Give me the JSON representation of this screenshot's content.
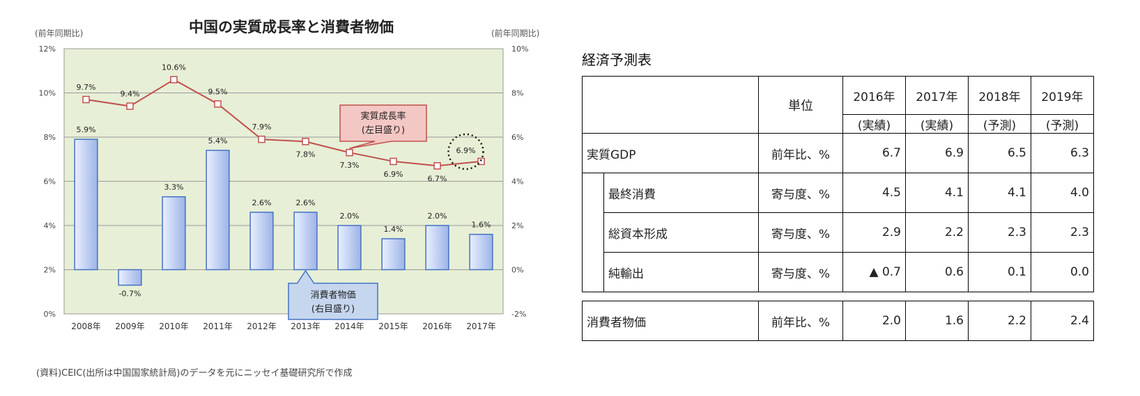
{
  "chart_data": {
    "type": "bar+line",
    "title": "中国の実質成長率と消費者物価",
    "left_axis_label": "(前年同期比)",
    "right_axis_label": "(前年同期比)",
    "categories": [
      "2008年",
      "2009年",
      "2010年",
      "2011年",
      "2012年",
      "2013年",
      "2014年",
      "2015年",
      "2016年",
      "2017年"
    ],
    "left_ticks": [
      "0%",
      "2%",
      "4%",
      "6%",
      "8%",
      "10%",
      "12%"
    ],
    "right_ticks": [
      "-2%",
      "0%",
      "2%",
      "4%",
      "6%",
      "8%",
      "10%"
    ],
    "ylim_left": [
      0,
      12
    ],
    "ylim_right": [
      -2,
      10
    ],
    "series": [
      {
        "name": "実質成長率",
        "kind": "line",
        "axis": "left",
        "values": [
          9.7,
          9.4,
          10.6,
          9.5,
          7.9,
          7.8,
          7.3,
          6.9,
          6.7,
          6.9
        ],
        "labels": [
          "9.7%",
          "9.4%",
          "10.6%",
          "9.5%",
          "7.9%",
          "7.8%",
          "7.3%",
          "6.9%",
          "6.7%",
          "6.9%"
        ],
        "color": "#c0504d"
      },
      {
        "name": "消費者物価",
        "kind": "bar",
        "axis": "right",
        "values": [
          5.9,
          -0.7,
          3.3,
          5.4,
          2.6,
          2.6,
          2.0,
          1.4,
          2.0,
          1.6
        ],
        "labels": [
          "5.9%",
          "-0.7%",
          "3.3%",
          "5.4%",
          "2.6%",
          "2.6%",
          "2.0%",
          "1.4%",
          "2.0%",
          "1.6%"
        ],
        "color": "#4472c4"
      }
    ],
    "callouts": {
      "growth": [
        "実質成長率",
        "(左目盛り)"
      ],
      "cpi": [
        "消費者物価",
        "(右目盛り)"
      ]
    },
    "source": "(資料)CEIC(出所は中国国家統計局)のデータを元にニッセイ基礎研究所で作成",
    "plot_bg": "#e7efd6",
    "grid": true
  },
  "table": {
    "title": "経済予測表",
    "unit_header": "単位",
    "years": [
      "2016年",
      "2017年",
      "2018年",
      "2019年"
    ],
    "year_types": [
      "(実績)",
      "(実績)",
      "(予測)",
      "(予測)"
    ],
    "rows": {
      "gdp": {
        "label": "実質GDP",
        "unit": "前年比、%",
        "values": [
          "6.7",
          "6.9",
          "6.5",
          "6.3"
        ]
      },
      "consumption": {
        "label": "最終消費",
        "unit": "寄与度、%",
        "values": [
          "4.5",
          "4.1",
          "4.1",
          "4.0"
        ]
      },
      "capital": {
        "label": "総資本形成",
        "unit": "寄与度、%",
        "values": [
          "2.9",
          "2.2",
          "2.3",
          "2.3"
        ]
      },
      "net_exports": {
        "label": "純輸出",
        "unit": "寄与度、%",
        "values": [
          "▲ 0.7",
          "0.6",
          "0.1",
          "0.0"
        ]
      },
      "cpi": {
        "label": "消費者物価",
        "unit": "前年比、%",
        "values": [
          "2.0",
          "1.6",
          "2.2",
          "2.4"
        ]
      }
    }
  }
}
